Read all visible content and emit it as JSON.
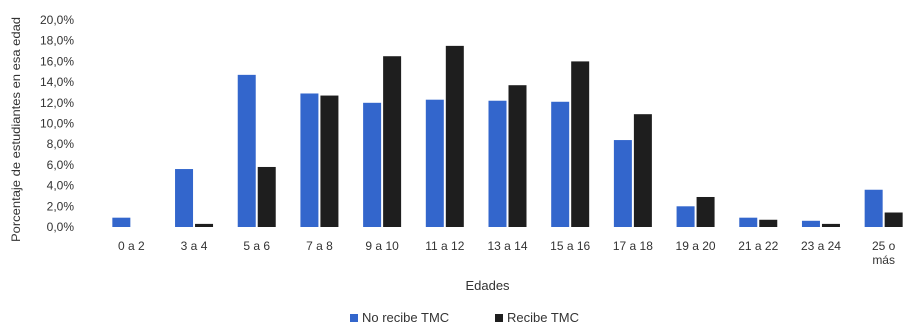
{
  "title": "",
  "chart_data": {
    "type": "bar",
    "ylabel": "Porcentaje de estudiantes en esa edad",
    "xlabel": "Edades",
    "ylim": [
      0,
      20
    ],
    "ytick_labels": [
      "0,0%",
      "2,0%",
      "4,0%",
      "6,0%",
      "8,0%",
      "10,0%",
      "12,0%",
      "14,0%",
      "16,0%",
      "18,0%",
      "20,0%"
    ],
    "ytick_values": [
      0,
      2,
      4,
      6,
      8,
      10,
      12,
      14,
      16,
      18,
      20
    ],
    "categories": [
      "0 a 2",
      "3 a 4",
      "5 a 6",
      "7 a 8",
      "9 a 10",
      "11 a 12",
      "13 a 14",
      "15 a 16",
      "17 a 18",
      "19 a 20",
      "21 a 22",
      "23 a 24",
      "25 o más"
    ],
    "series": [
      {
        "name": "No recibe TMC",
        "color": "#3366CC",
        "values": [
          0.9,
          5.6,
          14.7,
          12.9,
          12.0,
          12.3,
          12.2,
          12.1,
          8.4,
          2.0,
          0.9,
          0.6,
          3.6
        ]
      },
      {
        "name": "Recibe TMC",
        "color": "#1E1E1E",
        "values": [
          0.0,
          0.3,
          5.8,
          12.7,
          16.5,
          17.5,
          13.7,
          16.0,
          10.9,
          2.9,
          0.7,
          0.3,
          1.4
        ]
      }
    ],
    "grid": false,
    "legend_position": "bottom-center"
  }
}
